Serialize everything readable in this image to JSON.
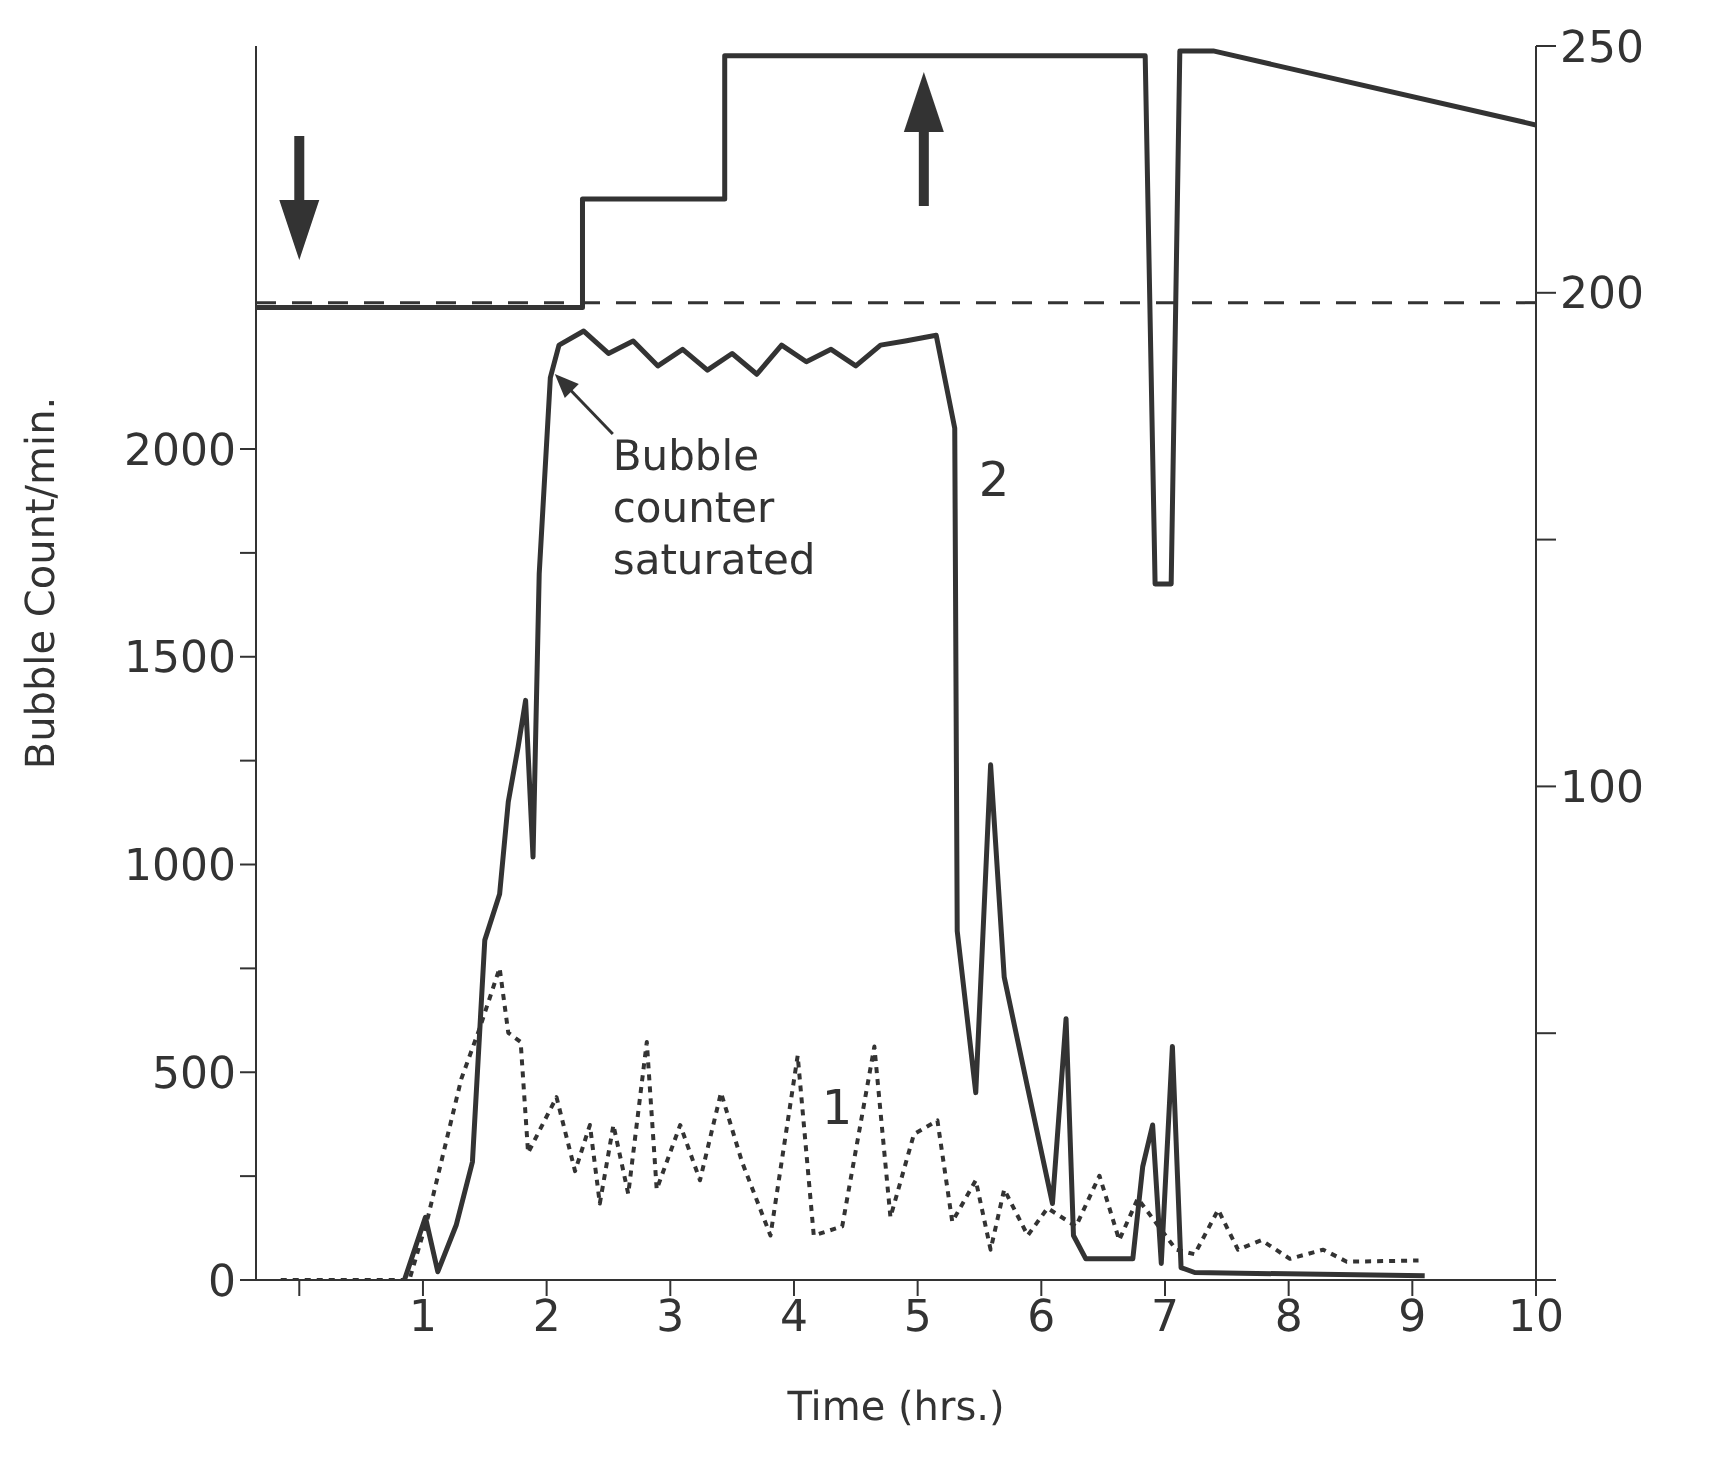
{
  "chart_data": {
    "type": "line",
    "xlabel": "Time (hrs.)",
    "ylabel": "Bubble Count/min.",
    "xlim": [
      -0.35,
      10
    ],
    "xticks": [
      {
        "value": 0,
        "label": null
      },
      1,
      2,
      3,
      4,
      5,
      6,
      7,
      8,
      9,
      10
    ],
    "ylim": [
      0,
      2970
    ],
    "yticks": [
      0,
      {
        "value": 250,
        "label": null
      },
      500,
      {
        "value": 750,
        "label": null
      },
      1000,
      {
        "value": 1250,
        "label": null
      },
      1500,
      {
        "value": 1750,
        "label": null
      },
      2000
    ],
    "y2lim": [
      0,
      250
    ],
    "y2ticks": [
      {
        "value": 0,
        "label": null
      },
      {
        "value": 50,
        "label": null
      },
      100,
      {
        "value": 150,
        "label": null
      },
      200,
      250
    ],
    "grid": false,
    "legend": false,
    "marker": "none",
    "series": [
      {
        "name": "1",
        "color": "#333333",
        "line_style": "dotted",
        "x": [
          -0.15,
          0.89,
          1.04,
          1.31,
          1.46,
          1.62,
          1.69,
          1.79,
          1.85,
          2.08,
          2.23,
          2.35,
          2.43,
          2.54,
          2.66,
          2.81,
          2.89,
          3.08,
          3.24,
          3.41,
          3.58,
          3.81,
          4.03,
          4.16,
          4.39,
          4.65,
          4.78,
          4.97,
          5.16,
          5.28,
          5.47,
          5.59,
          5.7,
          5.89,
          6.05,
          6.28,
          6.47,
          6.63,
          6.78,
          7.09,
          7.24,
          7.43,
          7.59,
          7.78,
          8.01,
          8.28,
          8.47,
          9.05
        ],
        "values": [
          0,
          0,
          151,
          484,
          607,
          751,
          595,
          573,
          306,
          440,
          262,
          373,
          184,
          373,
          207,
          573,
          218,
          373,
          240,
          451,
          284,
          107,
          540,
          107,
          129,
          562,
          151,
          351,
          384,
          140,
          240,
          73,
          218,
          107,
          173,
          129,
          251,
          96,
          196,
          73,
          62,
          169,
          73,
          96,
          51,
          73,
          44,
          47
        ]
      },
      {
        "name": "2",
        "color": "#333333",
        "line_style": "solid",
        "x": [
          0.85,
          1.02,
          1.12,
          1.27,
          1.4,
          1.5,
          1.62,
          1.69,
          1.77,
          1.83,
          1.89,
          1.94,
          2.03,
          2.1,
          2.3,
          2.5,
          2.7,
          2.9,
          3.1,
          3.3,
          3.5,
          3.7,
          3.9,
          4.1,
          4.3,
          4.5,
          4.7,
          4.9,
          5.15,
          5.3,
          5.32,
          5.47,
          5.59,
          5.7,
          5.89,
          6.09,
          6.2,
          6.26,
          6.36,
          6.74,
          6.82,
          6.9,
          6.97,
          7.06,
          7.13,
          7.24,
          9.1
        ],
        "values": [
          0,
          151,
          20,
          133,
          284,
          818,
          929,
          1151,
          1284,
          1395,
          1018,
          1700,
          2172,
          2250,
          2284,
          2230,
          2260,
          2200,
          2240,
          2190,
          2230,
          2180,
          2250,
          2210,
          2240,
          2200,
          2250,
          2260,
          2274,
          2050,
          840,
          451,
          1240,
          729,
          462,
          184,
          629,
          107,
          51,
          51,
          273,
          373,
          40,
          562,
          30,
          18,
          10
        ]
      },
      {
        "color": "#333333",
        "line_style": "solid",
        "axis": "y2",
        "x": [
          -0.35,
          2.29,
          2.29,
          3.44,
          3.44,
          6.84,
          6.92,
          7.05,
          7.12,
          7.39,
          10
        ],
        "values": [
          197,
          197,
          219,
          219,
          248,
          248,
          141,
          141,
          249,
          249,
          234
        ]
      }
    ],
    "ref_lines": [
      {
        "axis": "y2",
        "value": 198,
        "color": "#333333",
        "line_style": "dashed"
      }
    ],
    "annotations": [
      {
        "text": "Bubble counter saturated",
        "x": 2.05,
        "y": 2190
      }
    ]
  }
}
